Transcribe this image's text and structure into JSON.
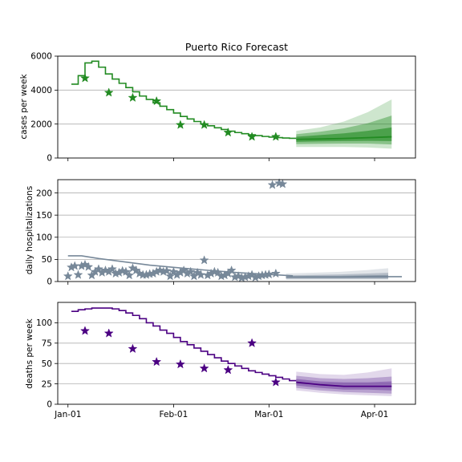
{
  "chart_data": [
    {
      "type": "line",
      "title": "Puerto Rico Forecast",
      "ylabel": "cases per week",
      "xlim": [
        "2020-12-29",
        "2021-04-13"
      ],
      "ylim": [
        0,
        6000
      ],
      "yticks": [
        0,
        2000,
        4000,
        6000
      ],
      "ytick_labels": [
        "0",
        "2000",
        "4000",
        "6000"
      ],
      "grid": "horizontal",
      "colors": {
        "model": "#228b22",
        "observed": "#228b22",
        "band": "#228b22"
      },
      "model_step": {
        "x": [
          "2021-01-02",
          "2021-01-04",
          "2021-01-06",
          "2021-01-08",
          "2021-01-10",
          "2021-01-12",
          "2021-01-14",
          "2021-01-16",
          "2021-01-18",
          "2021-01-20",
          "2021-01-22",
          "2021-01-24",
          "2021-01-26",
          "2021-01-28",
          "2021-01-30",
          "2021-02-01",
          "2021-02-03",
          "2021-02-05",
          "2021-02-07",
          "2021-02-09",
          "2021-02-11",
          "2021-02-13",
          "2021-02-15",
          "2021-02-17",
          "2021-02-19",
          "2021-02-21",
          "2021-02-23",
          "2021-02-25",
          "2021-02-27",
          "2021-03-01",
          "2021-03-03",
          "2021-03-05",
          "2021-03-07"
        ],
        "y": [
          4350,
          4850,
          5600,
          5700,
          5350,
          4950,
          4650,
          4400,
          4150,
          3900,
          3650,
          3450,
          3250,
          3050,
          2850,
          2650,
          2450,
          2300,
          2150,
          2000,
          1900,
          1780,
          1680,
          1580,
          1500,
          1430,
          1370,
          1320,
          1270,
          1230,
          1200,
          1180,
          1160
        ]
      },
      "observed": {
        "x": [
          "2021-01-06",
          "2021-01-13",
          "2021-01-20",
          "2021-01-27",
          "2021-02-03",
          "2021-02-10",
          "2021-02-17",
          "2021-02-24",
          "2021-03-03"
        ],
        "y": [
          4700,
          3850,
          3550,
          3350,
          1950,
          1950,
          1500,
          1250,
          1250
        ]
      },
      "forecast": {
        "x": [
          "2021-03-09",
          "2021-03-16",
          "2021-03-23",
          "2021-03-30",
          "2021-04-06"
        ],
        "median": [
          1100,
          1120,
          1150,
          1200,
          1250
        ],
        "p25": [
          950,
          980,
          1000,
          1010,
          1000
        ],
        "p75": [
          1250,
          1350,
          1450,
          1600,
          1800
        ],
        "p10": [
          820,
          840,
          850,
          850,
          800
        ],
        "p90": [
          1400,
          1550,
          1750,
          2050,
          2500
        ],
        "p2_5": [
          650,
          650,
          650,
          620,
          550
        ],
        "p97_5": [
          1600,
          1800,
          2150,
          2700,
          3450
        ]
      }
    },
    {
      "type": "line",
      "ylabel": "daily hospitalizations",
      "xlim": [
        "2020-12-29",
        "2021-04-13"
      ],
      "ylim": [
        0,
        230
      ],
      "yticks": [
        0,
        50,
        100,
        150,
        200
      ],
      "ytick_labels": [
        "0",
        "50",
        "100",
        "150",
        "200"
      ],
      "grid": "horizontal",
      "colors": {
        "model": "#778899",
        "observed": "#778899",
        "band": "#778899"
      },
      "model_line": {
        "x": [
          "2021-01-01",
          "2021-01-05",
          "2021-01-10",
          "2021-01-15",
          "2021-01-20",
          "2021-01-25",
          "2021-02-01",
          "2021-02-10",
          "2021-02-20",
          "2021-03-01",
          "2021-03-08"
        ],
        "y": [
          58,
          58,
          52,
          47,
          42,
          37,
          32,
          26,
          20,
          16,
          13
        ]
      },
      "observed": {
        "x": [
          "2021-01-01",
          "2021-01-02",
          "2021-01-03",
          "2021-01-04",
          "2021-01-05",
          "2021-01-06",
          "2021-01-07",
          "2021-01-08",
          "2021-01-09",
          "2021-01-10",
          "2021-01-11",
          "2021-01-12",
          "2021-01-13",
          "2021-01-14",
          "2021-01-15",
          "2021-01-16",
          "2021-01-17",
          "2021-01-18",
          "2021-01-19",
          "2021-01-20",
          "2021-01-21",
          "2021-01-22",
          "2021-01-23",
          "2021-01-24",
          "2021-01-25",
          "2021-01-26",
          "2021-01-27",
          "2021-01-28",
          "2021-01-29",
          "2021-01-30",
          "2021-01-31",
          "2021-02-01",
          "2021-02-02",
          "2021-02-03",
          "2021-02-04",
          "2021-02-05",
          "2021-02-06",
          "2021-02-07",
          "2021-02-08",
          "2021-02-09",
          "2021-02-10",
          "2021-02-11",
          "2021-02-12",
          "2021-02-13",
          "2021-02-14",
          "2021-02-15",
          "2021-02-16",
          "2021-02-17",
          "2021-02-18",
          "2021-02-19",
          "2021-02-20",
          "2021-02-21",
          "2021-02-22",
          "2021-02-23",
          "2021-02-24",
          "2021-02-25",
          "2021-02-26",
          "2021-02-27",
          "2021-02-28",
          "2021-03-01",
          "2021-03-02",
          "2021-03-03",
          "2021-03-04",
          "2021-03-05"
        ],
        "y": [
          12,
          32,
          35,
          15,
          35,
          38,
          33,
          14,
          22,
          28,
          20,
          25,
          22,
          28,
          18,
          20,
          24,
          22,
          14,
          30,
          25,
          18,
          15,
          15,
          17,
          18,
          22,
          25,
          22,
          24,
          12,
          22,
          15,
          20,
          25,
          18,
          22,
          12,
          20,
          15,
          48,
          14,
          18,
          22,
          20,
          12,
          14,
          18,
          25,
          10,
          12,
          8,
          10,
          12,
          15,
          9,
          12,
          14,
          15,
          16,
          218,
          18,
          222,
          220
        ]
      },
      "forecast": {
        "x": [
          "2021-03-06",
          "2021-03-14",
          "2021-03-22",
          "2021-03-30",
          "2021-04-05"
        ],
        "median": [
          10,
          10,
          10,
          11,
          11
        ],
        "p25": [
          8,
          8,
          8,
          8,
          8
        ],
        "p75": [
          12,
          13,
          13,
          14,
          15
        ],
        "p10": [
          6,
          6,
          6,
          6,
          6
        ],
        "p90": [
          14,
          15,
          16,
          18,
          20
        ],
        "p2_5": [
          4,
          4,
          4,
          4,
          4
        ],
        "p97_5": [
          18,
          20,
          22,
          26,
          30
        ]
      },
      "trailing_line": {
        "x": [
          "2021-04-05",
          "2021-04-09"
        ],
        "y": [
          11,
          11
        ]
      }
    },
    {
      "type": "line",
      "ylabel": "deaths per week",
      "xlim": [
        "2020-12-29",
        "2021-04-13"
      ],
      "ylim": [
        0,
        125
      ],
      "yticks": [
        0,
        25,
        50,
        75,
        100
      ],
      "ytick_labels": [
        "0",
        "25",
        "50",
        "75",
        "100"
      ],
      "grid": "horizontal",
      "xticks": [
        "2021-01-01",
        "2021-02-01",
        "2021-03-01",
        "2021-04-01"
      ],
      "xtick_labels": [
        "Jan-01",
        "Feb-01",
        "Mar-01",
        "Apr-01"
      ],
      "colors": {
        "model": "#4b0082",
        "observed": "#4b0082",
        "band": "#7b4fa6"
      },
      "model_step": {
        "x": [
          "2021-01-02",
          "2021-01-04",
          "2021-01-06",
          "2021-01-08",
          "2021-01-10",
          "2021-01-12",
          "2021-01-14",
          "2021-01-16",
          "2021-01-18",
          "2021-01-20",
          "2021-01-22",
          "2021-01-24",
          "2021-01-26",
          "2021-01-28",
          "2021-01-30",
          "2021-02-01",
          "2021-02-03",
          "2021-02-05",
          "2021-02-07",
          "2021-02-09",
          "2021-02-11",
          "2021-02-13",
          "2021-02-15",
          "2021-02-17",
          "2021-02-19",
          "2021-02-21",
          "2021-02-23",
          "2021-02-25",
          "2021-02-27",
          "2021-03-01",
          "2021-03-03",
          "2021-03-05",
          "2021-03-07"
        ],
        "y": [
          114,
          116,
          117,
          118,
          118,
          118,
          117,
          115,
          112,
          109,
          105,
          100,
          96,
          91,
          87,
          82,
          77,
          73,
          69,
          65,
          61,
          57,
          53,
          50,
          47,
          44,
          41,
          39,
          37,
          35,
          33,
          31,
          29
        ]
      },
      "observed": {
        "x": [
          "2021-01-06",
          "2021-01-13",
          "2021-01-20",
          "2021-01-27",
          "2021-02-03",
          "2021-02-10",
          "2021-02-17",
          "2021-02-24",
          "2021-03-03"
        ],
        "y": [
          90,
          87,
          68,
          52,
          49,
          44,
          42,
          75,
          27
        ]
      },
      "forecast": {
        "x": [
          "2021-03-09",
          "2021-03-16",
          "2021-03-23",
          "2021-03-30",
          "2021-04-06"
        ],
        "median": [
          27,
          24,
          22,
          22,
          22
        ],
        "p25": [
          23,
          20,
          18,
          18,
          17
        ],
        "p75": [
          31,
          28,
          27,
          27,
          28
        ],
        "p10": [
          20,
          17,
          15,
          14,
          13
        ],
        "p90": [
          35,
          32,
          31,
          32,
          34
        ],
        "p2_5": [
          17,
          14,
          12,
          11,
          10
        ],
        "p97_5": [
          40,
          37,
          36,
          39,
          44
        ]
      }
    }
  ]
}
